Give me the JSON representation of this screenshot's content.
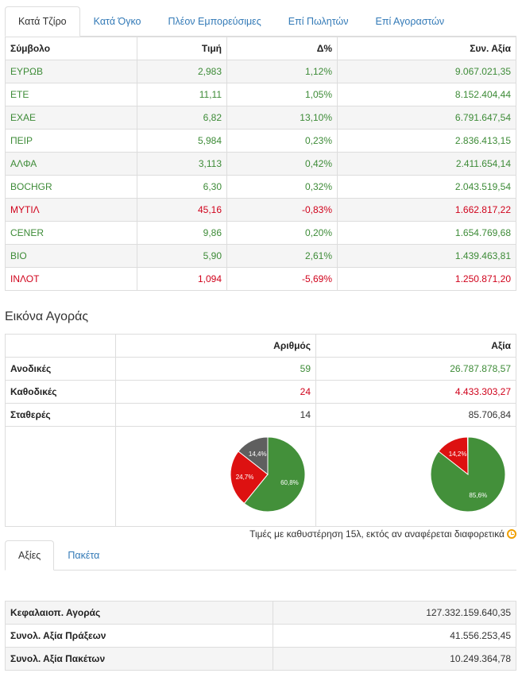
{
  "top_tabs": [
    "Κατά Τζίρο",
    "Κατά Όγκο",
    "Πλέον Εμπορεύσιμες",
    "Επί Πωλητών",
    "Επί Αγοραστών"
  ],
  "stocks": {
    "headers": [
      "Σύμβολο",
      "Τιμή",
      "Δ%",
      "Συν. Αξία"
    ],
    "rows": [
      {
        "symbol": "ΕΥΡΩΒ",
        "price": "2,983",
        "change": "1,12%",
        "value": "9.067.021,35",
        "dir": "up"
      },
      {
        "symbol": "ΕΤΕ",
        "price": "11,11",
        "change": "1,05%",
        "value": "8.152.404,44",
        "dir": "up"
      },
      {
        "symbol": "ΕΧΑΕ",
        "price": "6,82",
        "change": "13,10%",
        "value": "6.791.647,54",
        "dir": "up"
      },
      {
        "symbol": "ΠΕΙΡ",
        "price": "5,984",
        "change": "0,23%",
        "value": "2.836.413,15",
        "dir": "up"
      },
      {
        "symbol": "ΑΛΦΑ",
        "price": "3,113",
        "change": "0,42%",
        "value": "2.411.654,14",
        "dir": "up"
      },
      {
        "symbol": "BOCHGR",
        "price": "6,30",
        "change": "0,32%",
        "value": "2.043.519,54",
        "dir": "up"
      },
      {
        "symbol": "ΜΥΤΙΛ",
        "price": "45,16",
        "change": "-0,83%",
        "value": "1.662.817,22",
        "dir": "down"
      },
      {
        "symbol": "CENER",
        "price": "9,86",
        "change": "0,20%",
        "value": "1.654.769,68",
        "dir": "up"
      },
      {
        "symbol": "ΒΙΟ",
        "price": "5,90",
        "change": "2,61%",
        "value": "1.439.463,81",
        "dir": "up"
      },
      {
        "symbol": "ΙΝΛΟΤ",
        "price": "1,094",
        "change": "-5,69%",
        "value": "1.250.871,20",
        "dir": "down"
      }
    ]
  },
  "market": {
    "title": "Εικόνα Αγοράς",
    "headers": [
      "",
      "Αριθμός",
      "Αξία"
    ],
    "rows": [
      {
        "label": "Ανοδικές",
        "count": "59",
        "value": "26.787.878,57"
      },
      {
        "label": "Καθοδικές",
        "count": "24",
        "value": "4.433.303,27"
      },
      {
        "label": "Σταθερές",
        "count": "14",
        "value": "85.706,84"
      }
    ]
  },
  "chart_data": [
    {
      "type": "pie",
      "name": "count",
      "labels": [
        "Ανοδικές",
        "Καθοδικές",
        "Σταθερές"
      ],
      "values": [
        60.8,
        24.7,
        14.4
      ],
      "value_labels": [
        "60,8%",
        "24,7%",
        "14,4%"
      ],
      "colors": [
        "#43903a",
        "#dd1111",
        "#5f5f5f"
      ]
    },
    {
      "type": "pie",
      "name": "value",
      "labels": [
        "Ανοδικές",
        "Καθοδικές",
        "Σταθερές"
      ],
      "values": [
        85.6,
        14.2,
        0.2
      ],
      "value_labels": [
        "85,6%",
        "14,2%",
        ""
      ],
      "colors": [
        "#43903a",
        "#dd1111",
        "#5f5f5f"
      ]
    }
  ],
  "note": "Τιμές με καθυστέρηση 15λ, εκτός αν αναφέρεται διαφορετικά",
  "bottom_tabs": [
    "Αξίες",
    "Πακέτα"
  ],
  "totals": [
    {
      "label": "Κεφαλαιοπ. Αγοράς",
      "value": "127.332.159.640,35"
    },
    {
      "label": "Συνολ. Αξία Πράξεων",
      "value": "41.556.253,45"
    },
    {
      "label": "Συνολ. Αξία Πακέτων",
      "value": "10.249.364,78"
    }
  ]
}
